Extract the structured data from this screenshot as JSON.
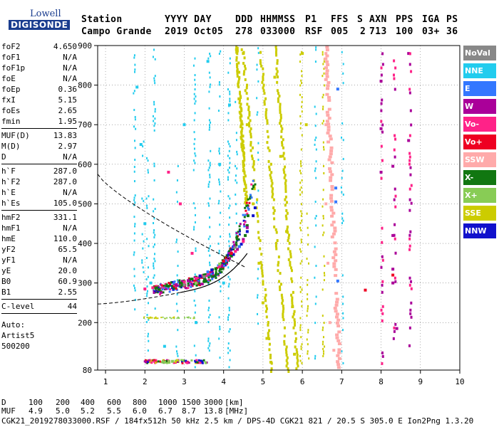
{
  "logo": {
    "line1": "Lowell",
    "line2": "DIGISONDE"
  },
  "header": {
    "labels": {
      "station": "Station",
      "yyyy_day": "YYYY DAY",
      "ddd": "DDD",
      "hhmmss": "HHMMSS",
      "p1": "P1",
      "ffs": "FFS",
      "s": "S",
      "axn": "AXN",
      "pps": "PPS",
      "iga": "IGA",
      "ps": "PS"
    },
    "values": {
      "station": "Campo Grande",
      "yyyy_day": "2019 Oct05",
      "ddd": "278",
      "hhmmss": "033000",
      "p1": "RSF",
      "ffs": "005",
      "s": "2",
      "axn": "713",
      "pps": "100",
      "iga": "03+",
      "ps": "36"
    }
  },
  "left_panel": {
    "group1": [
      {
        "k": "foF2",
        "v": "4.650"
      },
      {
        "k": "foF1",
        "v": "N/A"
      },
      {
        "k": "foF1p",
        "v": "N/A"
      },
      {
        "k": "foE",
        "v": "N/A"
      },
      {
        "k": "foEp",
        "v": "0.36"
      },
      {
        "k": "fxI",
        "v": "5.15"
      },
      {
        "k": "foEs",
        "v": "2.65"
      },
      {
        "k": "fmin",
        "v": "1.95"
      }
    ],
    "group2": [
      {
        "k": "MUF(D)",
        "v": "13.83"
      },
      {
        "k": "M(D)",
        "v": "2.97"
      },
      {
        "k": "D",
        "v": "N/A"
      }
    ],
    "group3": [
      {
        "k": "h`F",
        "v": "287.0"
      },
      {
        "k": "h`F2",
        "v": "287.0"
      },
      {
        "k": "h`E",
        "v": "N/A"
      },
      {
        "k": "h`Es",
        "v": "105.0"
      }
    ],
    "group4": [
      {
        "k": "hmF2",
        "v": "331.1"
      },
      {
        "k": "hmF1",
        "v": "N/A"
      },
      {
        "k": "hmE",
        "v": "110.0"
      },
      {
        "k": "yF2",
        "v": "65.5"
      },
      {
        "k": "yF1",
        "v": "N/A"
      },
      {
        "k": "yE",
        "v": "20.0"
      },
      {
        "k": "B0",
        "v": "60.9"
      },
      {
        "k": "B1",
        "v": "2.55"
      }
    ],
    "group5": [
      {
        "k": "C-level",
        "v": "44"
      }
    ],
    "auto": [
      "Auto:",
      "Artist5",
      "500200"
    ]
  },
  "legend": [
    {
      "label": "NoVal",
      "color": "#888888"
    },
    {
      "label": "NNE",
      "color": "#22ccee"
    },
    {
      "label": "E",
      "color": "#3377ff"
    },
    {
      "label": "W",
      "color": "#aa0099"
    },
    {
      "label": "Vo-",
      "color": "#ff2288"
    },
    {
      "label": "Vo+",
      "color": "#ee0022"
    },
    {
      "label": "SSW",
      "color": "#ffaaaa"
    },
    {
      "label": "X-",
      "color": "#117711"
    },
    {
      "label": "X+",
      "color": "#88cc55"
    },
    {
      "label": "SSE",
      "color": "#cccc00"
    },
    {
      "label": "NNW",
      "color": "#1111cc"
    }
  ],
  "chart_data": {
    "type": "scatter",
    "title": "",
    "xlabel": "",
    "ylabel": "",
    "xlim": [
      0.8,
      10
    ],
    "ylim": [
      80,
      900
    ],
    "x_ticks": [
      "1",
      "2",
      "3",
      "4",
      "5",
      "6",
      "7",
      "8",
      "9",
      "10"
    ],
    "y_ticks": [
      "80",
      "200",
      "300",
      "400",
      "500",
      "600",
      "700",
      "800",
      "900"
    ],
    "grid": true,
    "legend_position": "right",
    "series": [
      {
        "name": "X-",
        "color": "#117711",
        "points": [
          [
            2.3,
            288
          ],
          [
            2.6,
            292
          ],
          [
            2.9,
            300
          ],
          [
            3.2,
            310
          ],
          [
            3.5,
            320
          ],
          [
            3.8,
            336
          ],
          [
            4.0,
            350
          ],
          [
            4.2,
            368
          ],
          [
            4.4,
            392
          ],
          [
            4.55,
            420
          ],
          [
            4.6,
            445
          ],
          [
            4.62,
            470
          ]
        ]
      },
      {
        "name": "W",
        "color": "#aa0099",
        "points": [
          [
            2.8,
            296
          ],
          [
            3.1,
            306
          ],
          [
            3.4,
            316
          ],
          [
            3.7,
            330
          ],
          [
            3.95,
            345
          ],
          [
            4.15,
            362
          ],
          [
            4.35,
            385
          ],
          [
            4.5,
            410
          ],
          [
            4.6,
            440
          ],
          [
            8.0,
            810
          ],
          [
            8.0,
            690
          ],
          [
            8.0,
            580
          ],
          [
            8.3,
            595
          ],
          [
            8.3,
            420
          ],
          [
            8.3,
            335
          ],
          [
            8.3,
            300
          ],
          [
            8.4,
            185
          ],
          [
            8.7,
            880
          ],
          [
            8.7,
            660
          ]
        ]
      },
      {
        "name": "Vo-",
        "color": "#ff2288",
        "points": [
          [
            2.0,
            285
          ],
          [
            2.2,
            288
          ],
          [
            3.0,
            303
          ],
          [
            3.3,
            312
          ],
          [
            3.6,
            325
          ],
          [
            3.9,
            342
          ],
          [
            4.1,
            358
          ],
          [
            4.3,
            380
          ],
          [
            4.5,
            405
          ],
          [
            3.2,
            375
          ],
          [
            2.6,
            580
          ],
          [
            2.9,
            500
          ]
        ]
      },
      {
        "name": "NNW",
        "color": "#1111cc",
        "points": [
          [
            3.4,
            318
          ],
          [
            3.7,
            333
          ],
          [
            4.0,
            352
          ],
          [
            4.25,
            372
          ],
          [
            4.45,
            398
          ],
          [
            4.6,
            430
          ],
          [
            4.75,
            470
          ],
          [
            4.8,
            490
          ]
        ]
      },
      {
        "name": "E",
        "color": "#3377ff",
        "points": [
          [
            3.6,
            328
          ],
          [
            4.05,
            356
          ],
          [
            4.4,
            392
          ],
          [
            6.85,
            540
          ],
          [
            6.85,
            505
          ],
          [
            6.9,
            790
          ],
          [
            6.9,
            305
          ]
        ]
      },
      {
        "name": "NNE",
        "color": "#22ccee",
        "points": [
          [
            1.8,
            795
          ],
          [
            1.9,
            650
          ],
          [
            2.0,
            450
          ],
          [
            2.15,
            300
          ],
          [
            3.0,
            700
          ],
          [
            3.6,
            860
          ],
          [
            3.9,
            600
          ],
          [
            4.15,
            750
          ],
          [
            4.0,
            300
          ],
          [
            3.3,
            200
          ],
          [
            2.5,
            140
          ]
        ]
      },
      {
        "name": "SSE",
        "color": "#cccc00",
        "points": [
          [
            4.5,
            880
          ],
          [
            4.6,
            700
          ],
          [
            4.75,
            500
          ],
          [
            4.9,
            350
          ],
          [
            5.0,
            250
          ],
          [
            5.1,
            160
          ],
          [
            5.2,
            100
          ],
          [
            5.3,
            820
          ],
          [
            5.45,
            620
          ],
          [
            5.6,
            430
          ],
          [
            5.75,
            240
          ],
          [
            5.8,
            120
          ],
          [
            6.0,
            880
          ],
          [
            6.1,
            700
          ]
        ]
      },
      {
        "name": "SSW",
        "color": "#ffaaaa",
        "points": [
          [
            6.6,
            880
          ],
          [
            6.6,
            700
          ],
          [
            6.6,
            500
          ],
          [
            6.65,
            350
          ],
          [
            6.7,
            200
          ],
          [
            6.8,
            130
          ],
          [
            6.9,
            100
          ]
        ]
      },
      {
        "name": "X+",
        "color": "#88cc55",
        "points": [
          [
            2.5,
            100
          ],
          [
            2.7,
            102
          ],
          [
            3.3,
            300
          ],
          [
            3.9,
            348
          ]
        ]
      },
      {
        "name": "Vo+",
        "color": "#ee0022",
        "points": [
          [
            4.0,
            355
          ],
          [
            4.2,
            375
          ],
          [
            8.3,
            320
          ],
          [
            7.6,
            282
          ]
        ]
      },
      {
        "name": "NoVal",
        "color": "#888888",
        "points": [
          [
            3.0,
            295
          ],
          [
            3.5,
            316
          ],
          [
            4.3,
            390
          ]
        ]
      }
    ]
  },
  "footer": {
    "d_label": "D",
    "d_values": [
      "100",
      "200",
      "400",
      "600",
      "800",
      "1000",
      "1500",
      "3000"
    ],
    "d_unit": "[km]",
    "muf_label": "MUF",
    "muf_values": [
      "4.9",
      "5.0",
      "5.2",
      "5.5",
      "6.0",
      "6.7",
      "8.7",
      "13.8"
    ],
    "muf_unit": "[MHz]",
    "info": "CGK21_2019278033000.RSF / 184fx512h 50 kHz 2.5 km / DPS-4D CGK21 821 / 20.5 S 305.0 E Ion2Png 1.3.20"
  }
}
